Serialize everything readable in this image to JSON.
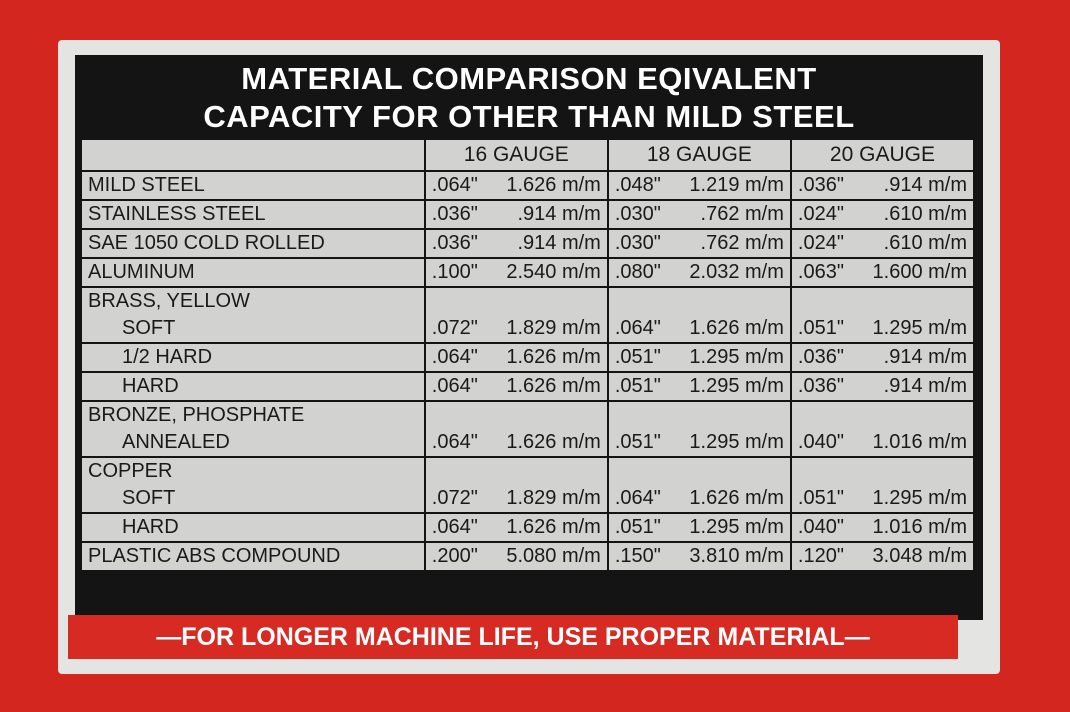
{
  "header": {
    "title": [
      "MATERIAL COMPARISON EQIVALENT",
      "CAPACITY FOR OTHER THAN MILD STEEL"
    ]
  },
  "table": {
    "columns": [
      "16 GAUGE",
      "18 GAUGE",
      "20 GAUGE"
    ],
    "rows": [
      {
        "label": "MILD STEEL",
        "values": [
          [
            ".064\"",
            "1.626 m/m"
          ],
          [
            ".048\"",
            "1.219 m/m"
          ],
          [
            ".036\"",
            ".914 m/m"
          ]
        ]
      },
      {
        "label": "STAINLESS STEEL",
        "values": [
          [
            ".036\"",
            ".914 m/m"
          ],
          [
            ".030\"",
            ".762 m/m"
          ],
          [
            ".024\"",
            ".610 m/m"
          ]
        ]
      },
      {
        "label": "SAE 1050 COLD ROLLED",
        "values": [
          [
            ".036\"",
            ".914 m/m"
          ],
          [
            ".030\"",
            ".762 m/m"
          ],
          [
            ".024\"",
            ".610 m/m"
          ]
        ]
      },
      {
        "label": "ALUMINUM",
        "values": [
          [
            ".100\"",
            "2.540 m/m"
          ],
          [
            ".080\"",
            "2.032 m/m"
          ],
          [
            ".063\"",
            "1.600 m/m"
          ]
        ]
      },
      {
        "label": "BRASS, YELLOW",
        "sub": [
          {
            "label": "SOFT",
            "values": [
              [
                ".072\"",
                "1.829 m/m"
              ],
              [
                ".064\"",
                "1.626 m/m"
              ],
              [
                ".051\"",
                "1.295 m/m"
              ]
            ]
          },
          {
            "label": "1/2 HARD",
            "values": [
              [
                ".064\"",
                "1.626 m/m"
              ],
              [
                ".051\"",
                "1.295 m/m"
              ],
              [
                ".036\"",
                ".914 m/m"
              ]
            ]
          },
          {
            "label": "HARD",
            "values": [
              [
                ".064\"",
                "1.626 m/m"
              ],
              [
                ".051\"",
                "1.295 m/m"
              ],
              [
                ".036\"",
                ".914 m/m"
              ]
            ]
          }
        ]
      },
      {
        "label": "BRONZE, PHOSPHATE",
        "sub": [
          {
            "label": "ANNEALED",
            "values": [
              [
                ".064\"",
                "1.626 m/m"
              ],
              [
                ".051\"",
                "1.295 m/m"
              ],
              [
                ".040\"",
                "1.016 m/m"
              ]
            ]
          }
        ]
      },
      {
        "label": "COPPER",
        "sub": [
          {
            "label": "SOFT",
            "values": [
              [
                ".072\"",
                "1.829 m/m"
              ],
              [
                ".064\"",
                "1.626 m/m"
              ],
              [
                ".051\"",
                "1.295 m/m"
              ]
            ]
          },
          {
            "label": "HARD",
            "values": [
              [
                ".064\"",
                "1.626 m/m"
              ],
              [
                ".051\"",
                "1.295 m/m"
              ],
              [
                ".040\"",
                "1.016 m/m"
              ]
            ]
          }
        ]
      },
      {
        "label": "PLASTIC ABS COMPOUND",
        "values": [
          [
            ".200\"",
            "5.080 m/m"
          ],
          [
            ".150\"",
            "3.810 m/m"
          ],
          [
            ".120\"",
            "3.048 m/m"
          ]
        ]
      }
    ]
  },
  "footer": "—FOR LONGER MACHINE LIFE, USE PROPER MATERIAL—"
}
